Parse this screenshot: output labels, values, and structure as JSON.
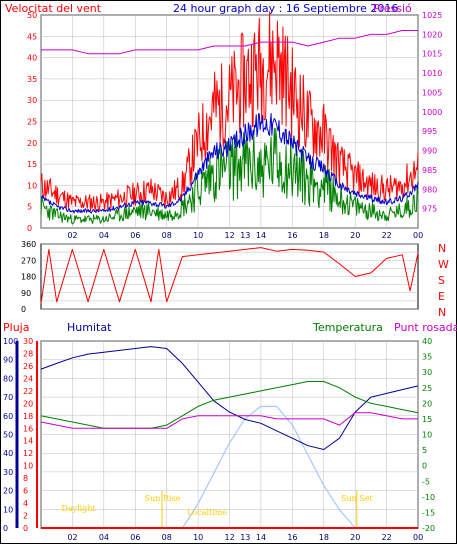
{
  "colors": {
    "wind": "#ff0000",
    "gust": "#ff0000",
    "avg": "#0000cc",
    "green": "#008000",
    "pressure": "#cc00cc",
    "humidity": "#000099",
    "dew": "#cc00cc",
    "rain": "#ff0000",
    "solar": "#a8c8ff",
    "astro": "#ffcc00"
  },
  "header": {
    "left": "Velocitat del vent",
    "center": "24 hour graph day : 16 Septiembre 2016",
    "right": "Pressió"
  },
  "bottom_header": {
    "rain": "Pluja",
    "humidity": "Humitat",
    "temp": "Temperatura",
    "dew": "Punt rosada"
  },
  "compass": [
    "N",
    "W",
    "S",
    "E",
    "N"
  ],
  "annotations": {
    "daylight": "Daylight",
    "sunrise": "Sun Rise",
    "localtime": "Localtime",
    "sunset": "Sun Set"
  },
  "x_labels": [
    "02",
    "04",
    "06",
    "08",
    "10",
    "12",
    "13",
    "14",
    "16",
    "18",
    "20",
    "22",
    "00"
  ],
  "bottom_x_labels": [
    "02",
    "04",
    "06",
    "08",
    "10",
    "12",
    "13",
    "14",
    "16",
    "18",
    "20",
    "22",
    "00"
  ],
  "chart_data": [
    {
      "type": "line",
      "name": "wind",
      "x": [
        0,
        1,
        2,
        3,
        4,
        5,
        6,
        7,
        8,
        9,
        10,
        11,
        12,
        13,
        14,
        15,
        16,
        17,
        18,
        19,
        20,
        21,
        22,
        23,
        24
      ],
      "yleft": {
        "range": [
          0,
          50
        ],
        "ticks": [
          0,
          5,
          10,
          15,
          20,
          25,
          30,
          35,
          40,
          45,
          50
        ]
      },
      "yright": {
        "range": [
          970,
          1025
        ],
        "ticks": [
          975,
          980,
          985,
          990,
          995,
          1000,
          1005,
          1010,
          1015,
          1020,
          1025
        ]
      },
      "series": [
        {
          "key": "gust",
          "values": [
            10,
            8,
            6,
            6,
            6,
            7,
            8,
            9,
            7,
            10,
            20,
            28,
            30,
            35,
            38,
            40,
            32,
            25,
            22,
            15,
            12,
            10,
            9,
            10,
            14
          ]
        },
        {
          "key": "avg",
          "values": [
            7,
            5,
            4,
            4,
            4,
            5,
            6,
            6,
            5,
            7,
            13,
            18,
            19,
            22,
            25,
            24,
            20,
            16,
            14,
            10,
            8,
            7,
            6,
            7,
            10
          ]
        },
        {
          "key": "green",
          "values": [
            5,
            3,
            2,
            2,
            2,
            3,
            4,
            4,
            3,
            5,
            9,
            13,
            14,
            15,
            14,
            16,
            14,
            11,
            10,
            7,
            5,
            4,
            3,
            4,
            7
          ]
        }
      ],
      "pressure": [
        1016,
        1016,
        1016,
        1015,
        1015,
        1015,
        1016,
        1016,
        1016,
        1016,
        1016,
        1017,
        1017,
        1017,
        1018,
        1018,
        1018,
        1017,
        1018,
        1019,
        1019,
        1020,
        1020,
        1021,
        1021
      ]
    },
    {
      "type": "line",
      "name": "direction",
      "yleft": {
        "range": [
          0,
          360
        ],
        "ticks": [
          0,
          45,
          90,
          135,
          180,
          225,
          270,
          315,
          360
        ]
      },
      "x": [
        0,
        0.5,
        1,
        2,
        3,
        4,
        5,
        6,
        7,
        7.5,
        8,
        9,
        10,
        11,
        12,
        13,
        14,
        15,
        16,
        17,
        18,
        19,
        20,
        21,
        22,
        23,
        23.5,
        24
      ],
      "values": [
        30,
        330,
        40,
        330,
        40,
        330,
        40,
        330,
        40,
        330,
        40,
        290,
        300,
        310,
        320,
        330,
        340,
        320,
        330,
        325,
        315,
        250,
        180,
        200,
        280,
        300,
        100,
        310
      ]
    },
    {
      "type": "line",
      "name": "environment",
      "yleft": {
        "range": [
          0,
          100
        ],
        "ticks": [
          0,
          10,
          20,
          30,
          40,
          50,
          60,
          70,
          80,
          90,
          100
        ]
      },
      "yrain": {
        "range": [
          0,
          30
        ],
        "ticks": [
          0,
          2,
          4,
          6,
          8,
          10,
          12,
          14,
          16,
          18,
          20,
          22,
          24,
          26,
          28,
          30
        ]
      },
      "yright": {
        "range": [
          -20,
          40
        ],
        "ticks": [
          -20,
          -15,
          -10,
          -5,
          0,
          5,
          10,
          15,
          20,
          25,
          30,
          35,
          40
        ]
      },
      "x": [
        0,
        1,
        2,
        3,
        4,
        5,
        6,
        7,
        8,
        9,
        10,
        11,
        12,
        13,
        14,
        15,
        16,
        17,
        18,
        19,
        20,
        21,
        22,
        23,
        24
      ],
      "humidity": [
        85,
        88,
        91,
        93,
        94,
        95,
        96,
        97,
        96,
        88,
        78,
        68,
        62,
        58,
        56,
        52,
        48,
        44,
        42,
        48,
        62,
        70,
        72,
        74,
        76
      ],
      "temperature": [
        16,
        15,
        14,
        13,
        12,
        12,
        12,
        12,
        13,
        16,
        19,
        21,
        22,
        23,
        24,
        25,
        26,
        27,
        27,
        25,
        22,
        20,
        19,
        18,
        17
      ],
      "dewpoint": [
        14,
        13,
        12,
        12,
        12,
        12,
        12,
        12,
        12,
        15,
        16,
        16,
        16,
        16,
        16,
        15,
        15,
        15,
        15,
        13,
        17,
        17,
        16,
        15,
        15
      ],
      "solar": [
        0,
        0,
        0,
        0,
        0,
        0,
        0,
        0,
        0,
        0,
        0.2,
        0.45,
        0.7,
        0.9,
        1.0,
        1.0,
        0.85,
        0.6,
        0.35,
        0.15,
        0,
        0,
        0,
        0,
        0
      ],
      "rain": [
        0,
        0,
        0,
        0,
        0,
        0,
        0,
        0,
        0,
        0,
        0,
        0,
        0,
        0,
        0,
        0,
        0,
        0,
        0,
        0,
        0,
        0,
        0,
        0,
        0
      ]
    }
  ]
}
